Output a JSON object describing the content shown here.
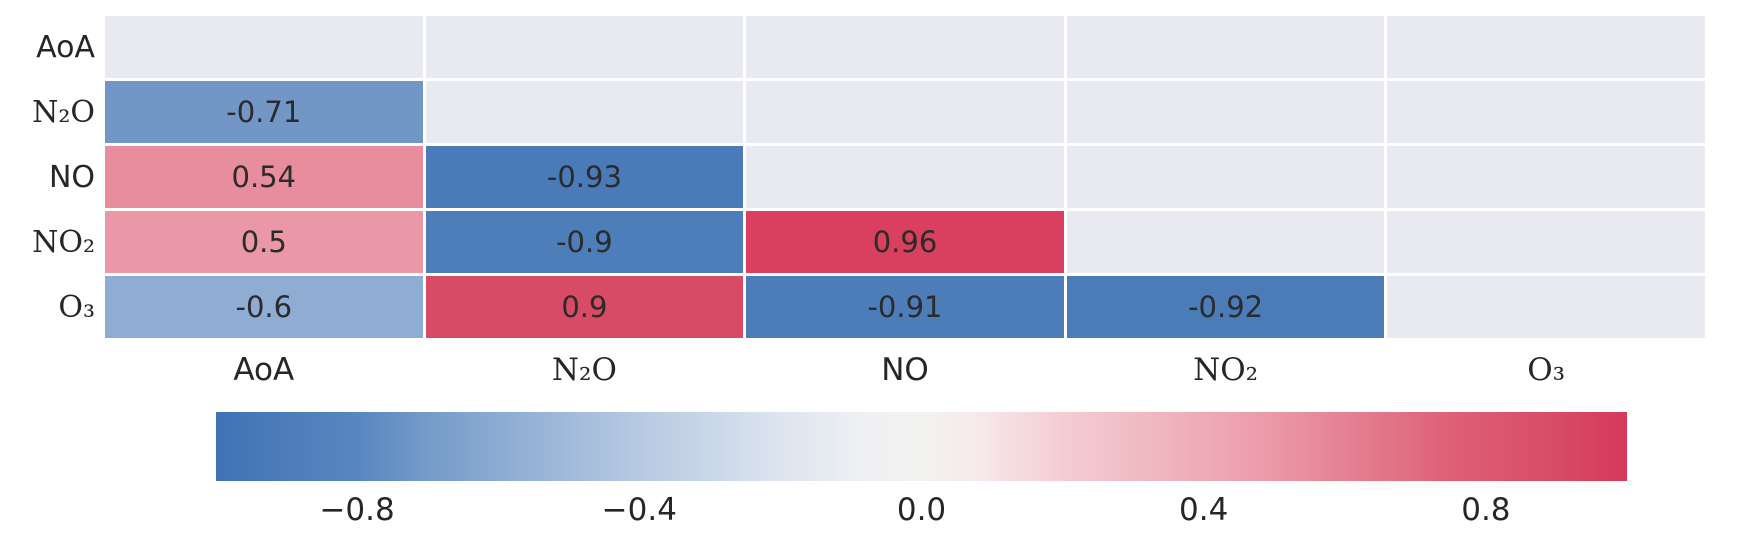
{
  "chart_data": {
    "type": "heatmap",
    "title": "",
    "description": "Lower-triangular correlation matrix heatmap with annotated coefficients and a horizontal diverging colorbar",
    "x_labels": [
      {
        "text": "AoA",
        "math": false
      },
      {
        "text": "N₂O",
        "math": true
      },
      {
        "text": "NO",
        "math": false
      },
      {
        "text": "NO₂",
        "math": true
      },
      {
        "text": "O₃",
        "math": true
      }
    ],
    "y_labels": [
      {
        "text": "AoA",
        "math": false
      },
      {
        "text": "N₂O",
        "math": true
      },
      {
        "text": "NO",
        "math": false
      },
      {
        "text": "NO₂",
        "math": true
      },
      {
        "text": "O₃",
        "math": true
      }
    ],
    "mask": "upper triangle and diagonal hidden (background cells)",
    "matrix": [
      [
        null,
        null,
        null,
        null,
        null
      ],
      [
        -0.71,
        null,
        null,
        null,
        null
      ],
      [
        0.54,
        -0.93,
        null,
        null,
        null
      ],
      [
        0.5,
        -0.9,
        0.96,
        null,
        null
      ],
      [
        -0.6,
        0.9,
        -0.91,
        -0.92,
        null
      ]
    ],
    "cells": [
      {
        "r": 1,
        "c": 0,
        "row": "N₂O",
        "col": "AoA",
        "value": -0.71,
        "label": "-0.71",
        "color": "#7297c6"
      },
      {
        "r": 2,
        "c": 0,
        "row": "NO",
        "col": "AoA",
        "value": 0.54,
        "label": "0.54",
        "color": "#e78d9e"
      },
      {
        "r": 2,
        "c": 1,
        "row": "NO",
        "col": "N₂O",
        "value": -0.93,
        "label": "-0.93",
        "color": "#4a7ab7"
      },
      {
        "r": 3,
        "c": 0,
        "row": "NO₂",
        "col": "AoA",
        "value": 0.5,
        "label": "0.5",
        "color": "#ea98a7"
      },
      {
        "r": 3,
        "c": 1,
        "row": "NO₂",
        "col": "N₂O",
        "value": -0.9,
        "label": "-0.9",
        "color": "#4e7eb9"
      },
      {
        "r": 3,
        "c": 2,
        "row": "NO₂",
        "col": "NO",
        "value": 0.96,
        "label": "0.96",
        "color": "#d93f5f"
      },
      {
        "r": 4,
        "c": 0,
        "row": "O₃",
        "col": "AoA",
        "value": -0.6,
        "label": "-0.6",
        "color": "#8fadd3"
      },
      {
        "r": 4,
        "c": 1,
        "row": "O₃",
        "col": "N₂O",
        "value": 0.9,
        "label": "0.9",
        "color": "#d84b66"
      },
      {
        "r": 4,
        "c": 2,
        "row": "O₃",
        "col": "NO",
        "value": -0.91,
        "label": "-0.91",
        "color": "#4d7db9"
      },
      {
        "r": 4,
        "c": 3,
        "row": "O₃",
        "col": "NO₂",
        "value": -0.92,
        "label": "-0.92",
        "color": "#4b7cb8"
      }
    ],
    "colorbar": {
      "orientation": "horizontal",
      "min": -1,
      "max": 1,
      "tick_values": [
        -0.8,
        -0.4,
        0.0,
        0.4,
        0.8
      ],
      "tick_labels": [
        "−0.8",
        "−0.4",
        "0.0",
        "0.4",
        "0.8"
      ],
      "gradient": [
        {
          "pos": 0.0,
          "color": "#3f73b5"
        },
        {
          "pos": 0.05,
          "color": "#4d7cb9"
        },
        {
          "pos": 0.1,
          "color": "#5886c0"
        },
        {
          "pos": 0.145,
          "color": "#7299c8"
        },
        {
          "pos": 0.2,
          "color": "#8cabd2"
        },
        {
          "pos": 0.3,
          "color": "#b7c9e2"
        },
        {
          "pos": 0.4,
          "color": "#dde5ef"
        },
        {
          "pos": 0.46,
          "color": "#eff0f3"
        },
        {
          "pos": 0.5,
          "color": "#f3f2f1"
        },
        {
          "pos": 0.54,
          "color": "#f6e9ea"
        },
        {
          "pos": 0.6,
          "color": "#f4cdd3"
        },
        {
          "pos": 0.7,
          "color": "#eeabb6"
        },
        {
          "pos": 0.75,
          "color": "#ea98a7"
        },
        {
          "pos": 0.8,
          "color": "#e58194"
        },
        {
          "pos": 0.875,
          "color": "#de6077"
        },
        {
          "pos": 0.95,
          "color": "#d84b66"
        },
        {
          "pos": 0.98,
          "color": "#d6405f"
        },
        {
          "pos": 1.0,
          "color": "#d43a5c"
        }
      ]
    },
    "layout": {
      "legend_position": "bottom",
      "grid_on": true
    },
    "colors": {
      "masked_cell": "#e9e9f2",
      "grid_line": "#ffffff",
      "axis_text": "#262626",
      "annotation_text": "#2b2b2b",
      "background": "#ffffff"
    }
  }
}
